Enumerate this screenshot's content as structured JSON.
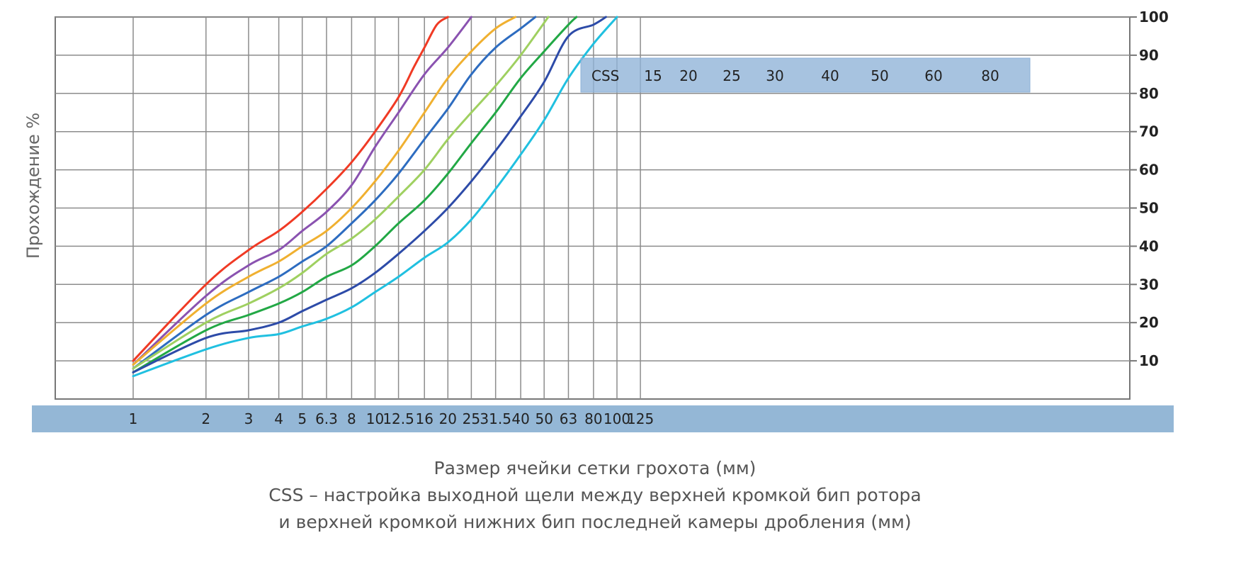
{
  "chart_data": {
    "type": "line",
    "ylabel": "Прохождение %",
    "xlabel_lines": [
      "Размер ячейки сетки грохота (мм)",
      "CSS – настройка выходной щели между верхней кромкой бип ротора",
      "и верхней кромкой нижних бип последней камеры дробления (мм)"
    ],
    "x_scale": "log",
    "x_ticks": [
      "1",
      "2",
      "3",
      "4",
      "5",
      "6.3",
      "8",
      "10",
      "12.5",
      "16",
      "20",
      "25",
      "31.5",
      "40",
      "50",
      "63",
      "80",
      "100",
      "125"
    ],
    "y_ticks": [
      "10",
      "20",
      "30",
      "40",
      "50",
      "60",
      "70",
      "80",
      "90",
      "100"
    ],
    "ylim": [
      0,
      100
    ],
    "grid": true,
    "legend": {
      "title": "CSS",
      "position": "top-right",
      "labels": [
        "15",
        "20",
        "25",
        "30",
        "40",
        "50",
        "60",
        "80"
      ]
    },
    "series": [
      {
        "name": "15",
        "color": "#f03a24",
        "points": [
          [
            1,
            10
          ],
          [
            2,
            30
          ],
          [
            3,
            39
          ],
          [
            4,
            44
          ],
          [
            5,
            49
          ],
          [
            6.3,
            55
          ],
          [
            8,
            62
          ],
          [
            10,
            70
          ],
          [
            12.5,
            79
          ],
          [
            14.5,
            87
          ],
          [
            16,
            92
          ],
          [
            18,
            98
          ],
          [
            20,
            100
          ]
        ]
      },
      {
        "name": "20",
        "color": "#8a52b0",
        "points": [
          [
            1,
            9
          ],
          [
            2,
            27
          ],
          [
            3,
            35
          ],
          [
            4,
            39
          ],
          [
            5,
            44
          ],
          [
            6.3,
            49
          ],
          [
            8,
            56
          ],
          [
            10,
            66
          ],
          [
            12.5,
            75
          ],
          [
            16,
            85
          ],
          [
            20,
            92
          ],
          [
            25,
            100
          ]
        ]
      },
      {
        "name": "25",
        "color": "#f0b030",
        "points": [
          [
            1,
            9
          ],
          [
            2,
            25
          ],
          [
            3,
            32
          ],
          [
            4,
            36
          ],
          [
            5,
            40
          ],
          [
            6.3,
            44
          ],
          [
            8,
            50
          ],
          [
            10,
            57
          ],
          [
            12.5,
            65
          ],
          [
            16,
            75
          ],
          [
            20,
            84
          ],
          [
            25,
            91
          ],
          [
            31.5,
            97
          ],
          [
            38,
            100
          ]
        ]
      },
      {
        "name": "30",
        "color": "#2d6cc0",
        "points": [
          [
            1,
            8
          ],
          [
            2,
            22
          ],
          [
            3,
            28
          ],
          [
            4,
            32
          ],
          [
            5,
            36
          ],
          [
            6.3,
            40
          ],
          [
            8,
            46
          ],
          [
            10,
            52
          ],
          [
            12.5,
            59
          ],
          [
            16,
            68
          ],
          [
            20,
            76
          ],
          [
            25,
            85
          ],
          [
            31.5,
            92
          ],
          [
            40,
            97
          ],
          [
            46,
            100
          ]
        ]
      },
      {
        "name": "40",
        "color": "#9fd060",
        "points": [
          [
            1,
            8
          ],
          [
            2,
            20
          ],
          [
            3,
            25
          ],
          [
            4,
            29
          ],
          [
            5,
            33
          ],
          [
            6.3,
            38
          ],
          [
            8,
            42
          ],
          [
            10,
            47
          ],
          [
            12.5,
            53
          ],
          [
            16,
            60
          ],
          [
            20,
            68
          ],
          [
            25,
            75
          ],
          [
            31.5,
            82
          ],
          [
            40,
            90
          ],
          [
            52,
            100
          ]
        ]
      },
      {
        "name": "50",
        "color": "#22a845",
        "points": [
          [
            1,
            7
          ],
          [
            2,
            18
          ],
          [
            3,
            22
          ],
          [
            4,
            25
          ],
          [
            5,
            28
          ],
          [
            6.3,
            32
          ],
          [
            8,
            35
          ],
          [
            10,
            40
          ],
          [
            12.5,
            46
          ],
          [
            16,
            52
          ],
          [
            20,
            59
          ],
          [
            25,
            67
          ],
          [
            31.5,
            75
          ],
          [
            40,
            84
          ],
          [
            50,
            91
          ],
          [
            63,
            98
          ],
          [
            68,
            100
          ]
        ]
      },
      {
        "name": "60",
        "color": "#2d4ba8",
        "points": [
          [
            1,
            7
          ],
          [
            2,
            16
          ],
          [
            3,
            18
          ],
          [
            4,
            20
          ],
          [
            5,
            23
          ],
          [
            6.3,
            26
          ],
          [
            8,
            29
          ],
          [
            10,
            33
          ],
          [
            12.5,
            38
          ],
          [
            16,
            44
          ],
          [
            20,
            50
          ],
          [
            25,
            57
          ],
          [
            31.5,
            65
          ],
          [
            40,
            74
          ],
          [
            50,
            83
          ],
          [
            63,
            95
          ],
          [
            80,
            98
          ],
          [
            90,
            100
          ]
        ]
      },
      {
        "name": "80",
        "color": "#20c0e0",
        "points": [
          [
            1,
            6
          ],
          [
            2,
            13
          ],
          [
            3,
            16
          ],
          [
            4,
            17
          ],
          [
            5,
            19
          ],
          [
            6.3,
            21
          ],
          [
            8,
            24
          ],
          [
            10,
            28
          ],
          [
            12.5,
            32
          ],
          [
            16,
            37
          ],
          [
            20,
            41
          ],
          [
            25,
            47
          ],
          [
            31.5,
            55
          ],
          [
            40,
            64
          ],
          [
            50,
            73
          ],
          [
            63,
            84
          ],
          [
            80,
            93
          ],
          [
            100,
            100
          ]
        ]
      }
    ]
  }
}
